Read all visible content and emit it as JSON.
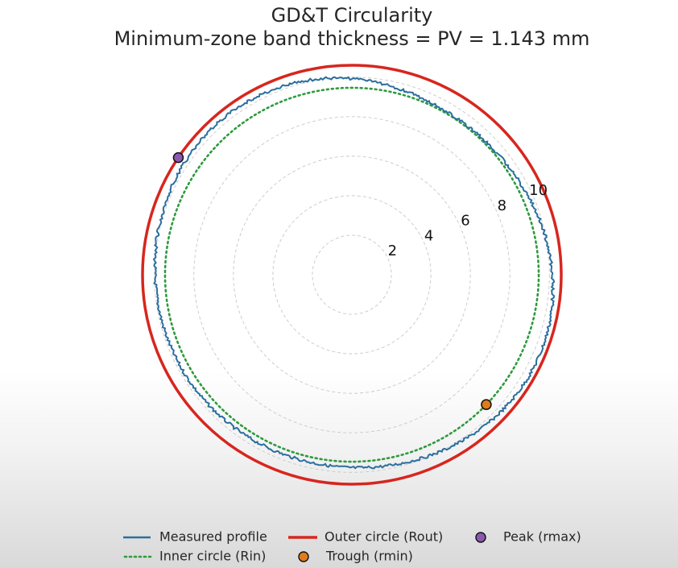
{
  "chart_data": {
    "type": "polar-line",
    "title": "GD&T Circularity",
    "subtitle": "Minimum-zone band thickness = PV = 1.143 mm",
    "r_ticks": [
      2,
      4,
      6,
      8,
      10
    ],
    "r_max": 10.6,
    "grid": true,
    "series": [
      {
        "name": "Measured profile",
        "kind": "line",
        "color": "#2a6f9e",
        "mean_radius": 9.95,
        "amplitude": 0.55,
        "peak_angle_deg": 146,
        "peak_radius": 10.6,
        "trough_angle_deg": 316,
        "trough_radius": 9.46
      },
      {
        "name": "Outer circle (Rout)",
        "kind": "circle",
        "color": "#d7261e",
        "radius": 10.6
      },
      {
        "name": "Inner circle (Rin)",
        "kind": "dotted-circle",
        "color": "#2e9a3e",
        "radius": 9.46
      },
      {
        "name": "Peak (rmax)",
        "kind": "point",
        "color": "#8b59b0",
        "angle_deg": 146,
        "radius": 10.6
      },
      {
        "name": "Trough (rmin)",
        "kind": "point",
        "color": "#e07b1a",
        "angle_deg": 316,
        "radius": 9.46
      }
    ],
    "legend": {
      "placement": "bottom",
      "columns": 3,
      "entries": [
        "Measured profile",
        "Outer circle (Rout)",
        "Peak (rmax)",
        "Inner circle (Rin)",
        "Trough (rmin)"
      ]
    }
  }
}
